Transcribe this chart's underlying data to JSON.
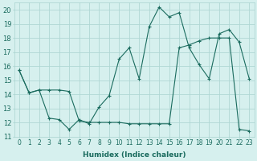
{
  "x": [
    0,
    1,
    2,
    3,
    4,
    5,
    6,
    7,
    8,
    9,
    10,
    11,
    12,
    13,
    14,
    15,
    16,
    17,
    18,
    19,
    20,
    21,
    22,
    23
  ],
  "line1": [
    15.7,
    14.1,
    14.3,
    12.3,
    12.2,
    11.5,
    12.2,
    11.9,
    13.1,
    13.9,
    16.5,
    17.3,
    15.1,
    18.8,
    20.2,
    19.5,
    19.8,
    17.3,
    16.1,
    15.1,
    18.3,
    18.6,
    17.7,
    15.1
  ],
  "line2": [
    15.7,
    14.1,
    14.3,
    14.3,
    14.3,
    14.2,
    12.1,
    12.0,
    12.0,
    12.0,
    12.0,
    11.9,
    11.9,
    11.9,
    11.9,
    11.9,
    17.3,
    17.5,
    17.8,
    18.0,
    18.0,
    18.0,
    11.5,
    11.4
  ],
  "line_color": "#1a6b5e",
  "bg_color": "#d6f0ee",
  "grid_color": "#b0d8d4",
  "xlabel": "Humidex (Indice chaleur)",
  "ylim": [
    11,
    20.5
  ],
  "xlim": [
    -0.5,
    23.5
  ],
  "yticks": [
    11,
    12,
    13,
    14,
    15,
    16,
    17,
    18,
    19,
    20
  ],
  "xtick_labels": [
    "0",
    "1",
    "2",
    "3",
    "4",
    "5",
    "6",
    "7",
    "8",
    "9",
    "10",
    "11",
    "12",
    "13",
    "14",
    "15",
    "16",
    "17",
    "18",
    "19",
    "20",
    "21",
    "22",
    "23"
  ],
  "title_color": "#1a6b5e",
  "label_fontsize": 6.0,
  "tick_fontsize": 5.5
}
